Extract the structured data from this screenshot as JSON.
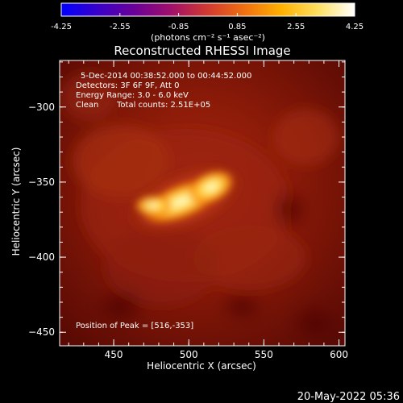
{
  "colorbar": {
    "tick_labels": [
      "-4.25",
      "-2.55",
      "-0.85",
      "0.85",
      "2.55",
      "4.25"
    ],
    "unit_label": "(photons cm⁻² s⁻¹ asec⁻²)",
    "colormap": [
      "#0000ff",
      "#3a00c8",
      "#6c0098",
      "#a0106a",
      "#d23a30",
      "#f07010",
      "#ffb000",
      "#ffe060",
      "#ffffff"
    ]
  },
  "image": {
    "title": "Reconstructed RHESSI Image",
    "info": {
      "time_range": "5-Dec-2014 00:38:52.000 to 00:44:52.000",
      "detectors": "Detectors: 3F 6F 9F, Att 0",
      "energy_range": "Energy Range: 3.0 - 6.0 keV",
      "clean": "Clean",
      "total_counts": "Total counts: 2.51E+05"
    },
    "peak_text": "Position of Peak = [516,-353]",
    "peak_position": {
      "x": 516,
      "y": -353
    }
  },
  "axes": {
    "xlabel": "Heliocentric X (arcsec)",
    "ylabel": "Heliocentric Y (arcsec)",
    "xticks": [
      "450",
      "500",
      "550",
      "600"
    ],
    "yticks": [
      "−300",
      "−350",
      "−400",
      "−450"
    ],
    "xlim": [
      414,
      604
    ],
    "ylim": [
      -459,
      -269
    ]
  },
  "footer": {
    "timestamp": "20-May-2022 05:36"
  }
}
